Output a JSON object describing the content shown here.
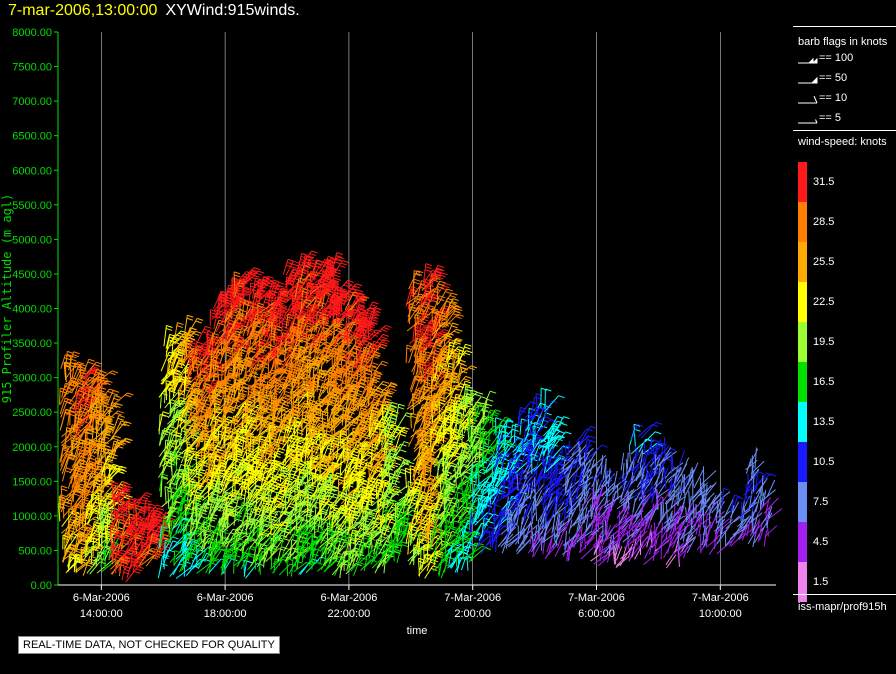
{
  "title": {
    "date": "7-mar-2006,13:00:00",
    "main": "XYWind:915winds."
  },
  "disclaimer": "REAL-TIME DATA, NOT CHECKED FOR QUALITY",
  "legend": {
    "barb_title": "barb flags in knots",
    "barbs": [
      {
        "label": "== 100",
        "kind": "pennant2"
      },
      {
        "label": "== 50",
        "kind": "pennant"
      },
      {
        "label": "== 10",
        "kind": "full"
      },
      {
        "label": "== 5",
        "kind": "half"
      }
    ],
    "speed_title": "wind-speed: knots",
    "speed_scale": [
      {
        "label": "31.5",
        "color": "#ff1a1a"
      },
      {
        "label": "28.5",
        "color": "#ff8000"
      },
      {
        "label": "25.5",
        "color": "#ffaa00"
      },
      {
        "label": "22.5",
        "color": "#ffff00"
      },
      {
        "label": "19.5",
        "color": "#9aff33"
      },
      {
        "label": "16.5",
        "color": "#00e000"
      },
      {
        "label": "13.5",
        "color": "#00ffff"
      },
      {
        "label": "10.5",
        "color": "#1a1aff"
      },
      {
        "label": "7.5",
        "color": "#6b8ef5"
      },
      {
        "label": "4.5",
        "color": "#a020f0"
      },
      {
        "label": "1.5",
        "color": "#ee82ee"
      }
    ],
    "source": "iss-mapr/prof915h"
  },
  "colors": {
    "axis": "#00dd00",
    "grid": "#ffffff",
    "frame": "#ffffff"
  },
  "chart_data": {
    "type": "scatter",
    "subtype": "wind-barb time-height plot",
    "xlabel": "time",
    "ylabel": "915 Profiler Altitude (m agl)",
    "ylim": [
      0,
      8000
    ],
    "yticks": [
      "0.00",
      "500.00",
      "1000.00",
      "1500.00",
      "2000.00",
      "2500.00",
      "3000.00",
      "3500.00",
      "4000.00",
      "4500.00",
      "5000.00",
      "5500.00",
      "6000.00",
      "6500.00",
      "7000.00",
      "7500.00",
      "8000.00"
    ],
    "xlim_hours": [
      12.6,
      35.8
    ],
    "xticks": [
      {
        "hour": 14,
        "line1": "6-Mar-2006",
        "line2": "14:00:00"
      },
      {
        "hour": 18,
        "line1": "6-Mar-2006",
        "line2": "18:00:00"
      },
      {
        "hour": 22,
        "line1": "6-Mar-2006",
        "line2": "22:00:00"
      },
      {
        "hour": 26,
        "line1": "7-Mar-2006",
        "line2": "2:00:00"
      },
      {
        "hour": 30,
        "line1": "7-Mar-2006",
        "line2": "6:00:00"
      },
      {
        "hour": 34,
        "line1": "7-Mar-2006",
        "line2": "10:00:00"
      }
    ],
    "grid_vertical": true,
    "profiles": [
      {
        "hour": 12.9,
        "top": 3200,
        "bottom": 150,
        "peak": 29,
        "low": 24
      },
      {
        "hour": 13.3,
        "top": 3100,
        "bottom": 150,
        "peak": 31,
        "low": 25
      },
      {
        "hour": 13.7,
        "top": 2900,
        "bottom": 200,
        "peak": 30,
        "low": 20
      },
      {
        "hour": 14.1,
        "top": 2600,
        "bottom": 250,
        "peak": 28,
        "low": 18
      },
      {
        "hour": 14.5,
        "top": 1200,
        "bottom": 100,
        "peak": 31,
        "low": 30
      },
      {
        "hour": 14.9,
        "top": 1100,
        "bottom": 100,
        "peak": 32,
        "low": 31
      },
      {
        "hour": 15.3,
        "top": 950,
        "bottom": 300,
        "peak": 32,
        "low": 31
      },
      {
        "hour": 15.7,
        "top": 850,
        "bottom": 400,
        "peak": 32,
        "low": 31
      },
      {
        "hour": 16.1,
        "top": 3500,
        "bottom": 150,
        "peak": 24,
        "low": 14
      },
      {
        "hour": 16.5,
        "top": 3600,
        "bottom": 150,
        "peak": 26,
        "low": 13
      },
      {
        "hour": 16.9,
        "top": 3300,
        "bottom": 200,
        "peak": 30,
        "low": 14
      },
      {
        "hour": 17.3,
        "top": 3500,
        "bottom": 200,
        "peak": 32,
        "low": 15
      },
      {
        "hour": 17.7,
        "top": 4000,
        "bottom": 200,
        "peak": 32,
        "low": 15
      },
      {
        "hour": 18.1,
        "top": 4200,
        "bottom": 150,
        "peak": 32,
        "low": 16
      },
      {
        "hour": 18.5,
        "top": 4400,
        "bottom": 150,
        "peak": 32,
        "low": 15
      },
      {
        "hour": 18.9,
        "top": 4300,
        "bottom": 200,
        "peak": 32,
        "low": 16
      },
      {
        "hour": 19.3,
        "top": 4200,
        "bottom": 200,
        "peak": 32,
        "low": 17
      },
      {
        "hour": 19.7,
        "top": 4100,
        "bottom": 200,
        "peak": 32,
        "low": 16
      },
      {
        "hour": 20.1,
        "top": 4500,
        "bottom": 150,
        "peak": 32,
        "low": 16
      },
      {
        "hour": 20.5,
        "top": 4600,
        "bottom": 150,
        "peak": 32,
        "low": 15
      },
      {
        "hour": 20.9,
        "top": 4550,
        "bottom": 200,
        "peak": 32,
        "low": 16
      },
      {
        "hour": 21.3,
        "top": 4500,
        "bottom": 150,
        "peak": 32,
        "low": 16
      },
      {
        "hour": 21.7,
        "top": 4200,
        "bottom": 150,
        "peak": 32,
        "low": 17
      },
      {
        "hour": 22.1,
        "top": 4100,
        "bottom": 150,
        "peak": 32,
        "low": 17
      },
      {
        "hour": 22.5,
        "top": 3800,
        "bottom": 200,
        "peak": 32,
        "low": 16
      },
      {
        "hour": 22.9,
        "top": 2800,
        "bottom": 200,
        "peak": 26,
        "low": 18
      },
      {
        "hour": 23.3,
        "top": 2400,
        "bottom": 300,
        "peak": 22,
        "low": 17
      },
      {
        "hour": 23.7,
        "top": 1300,
        "bottom": 600,
        "peak": 20,
        "low": 17
      },
      {
        "hour": 24.1,
        "top": 4300,
        "bottom": 200,
        "peak": 31,
        "low": 20
      },
      {
        "hour": 24.5,
        "top": 4400,
        "bottom": 150,
        "peak": 31,
        "low": 22
      },
      {
        "hour": 24.9,
        "top": 4100,
        "bottom": 150,
        "peak": 28,
        "low": 16
      },
      {
        "hour": 25.3,
        "top": 3300,
        "bottom": 200,
        "peak": 26,
        "low": 14
      },
      {
        "hour": 25.7,
        "top": 2700,
        "bottom": 200,
        "peak": 22,
        "low": 13
      },
      {
        "hour": 26.1,
        "top": 2500,
        "bottom": 600,
        "peak": 20,
        "low": 11
      },
      {
        "hour": 26.5,
        "top": 2300,
        "bottom": 500,
        "peak": 17,
        "low": 9
      },
      {
        "hour": 26.9,
        "top": 2200,
        "bottom": 500,
        "peak": 15,
        "low": 8
      },
      {
        "hour": 27.3,
        "top": 2100,
        "bottom": 500,
        "peak": 13,
        "low": 7
      },
      {
        "hour": 27.7,
        "top": 2400,
        "bottom": 500,
        "peak": 12,
        "low": 6
      },
      {
        "hour": 28.1,
        "top": 2600,
        "bottom": 400,
        "peak": 13,
        "low": 6
      },
      {
        "hour": 28.5,
        "top": 2200,
        "bottom": 400,
        "peak": 13,
        "low": 5
      },
      {
        "hour": 28.9,
        "top": 1800,
        "bottom": 400,
        "peak": 10,
        "low": 5
      },
      {
        "hour": 29.3,
        "top": 2100,
        "bottom": 400,
        "peak": 11,
        "low": 5
      },
      {
        "hour": 29.7,
        "top": 1900,
        "bottom": 400,
        "peak": 10,
        "low": 4
      },
      {
        "hour": 30.1,
        "top": 1600,
        "bottom": 300,
        "peak": 9,
        "low": 3
      },
      {
        "hour": 30.5,
        "top": 1400,
        "bottom": 300,
        "peak": 8,
        "low": 3
      },
      {
        "hour": 30.9,
        "top": 1700,
        "bottom": 300,
        "peak": 9,
        "low": 3
      },
      {
        "hour": 31.3,
        "top": 2100,
        "bottom": 300,
        "peak": 12,
        "low": 3
      },
      {
        "hour": 31.7,
        "top": 2000,
        "bottom": 400,
        "peak": 11,
        "low": 3
      },
      {
        "hour": 32.1,
        "top": 1900,
        "bottom": 400,
        "peak": 10,
        "low": 3
      },
      {
        "hour": 32.5,
        "top": 1700,
        "bottom": 300,
        "peak": 9,
        "low": 3
      },
      {
        "hour": 32.9,
        "top": 1500,
        "bottom": 400,
        "peak": 9,
        "low": 4
      },
      {
        "hour": 33.3,
        "top": 1400,
        "bottom": 500,
        "peak": 8,
        "low": 4
      },
      {
        "hour": 33.7,
        "top": 1200,
        "bottom": 500,
        "peak": 8,
        "low": 5
      },
      {
        "hour": 34.1,
        "top": 1100,
        "bottom": 600,
        "peak": 9,
        "low": 5
      },
      {
        "hour": 34.5,
        "top": 1000,
        "bottom": 600,
        "peak": 8,
        "low": 5
      },
      {
        "hour": 34.9,
        "top": 1700,
        "bottom": 600,
        "peak": 9,
        "low": 6
      },
      {
        "hour": 35.3,
        "top": 1400,
        "bottom": 600,
        "peak": 8,
        "low": 5
      }
    ]
  }
}
